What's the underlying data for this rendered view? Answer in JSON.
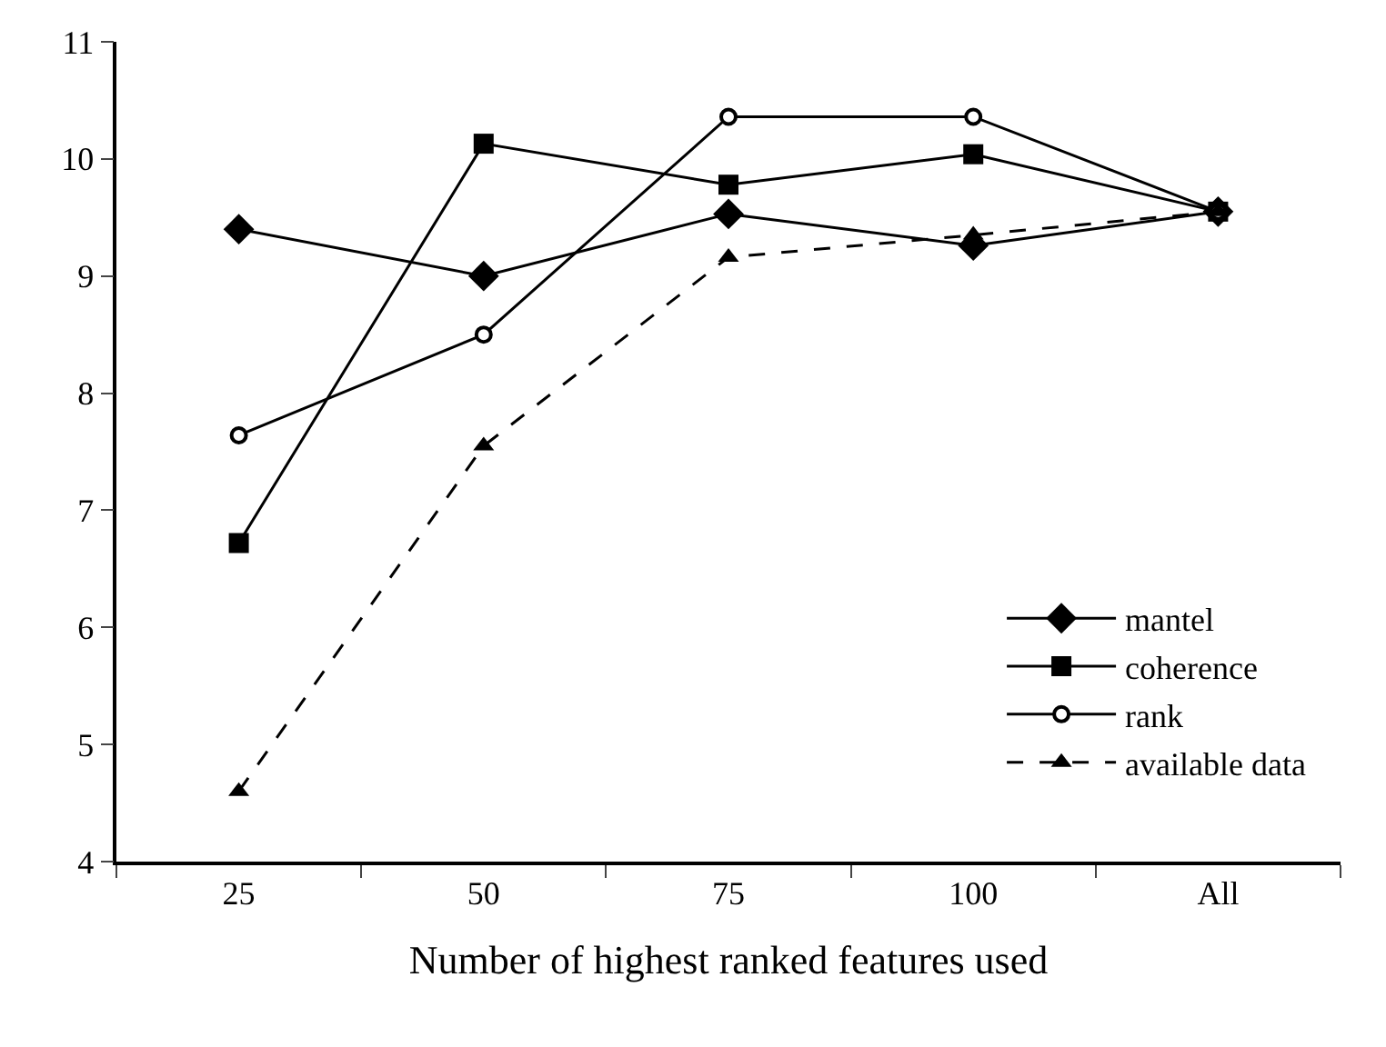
{
  "chart_data": {
    "type": "line",
    "xlabel": "Number of highest ranked features used",
    "categories": [
      "25",
      "50",
      "75",
      "100",
      "All"
    ],
    "series": [
      {
        "name": "mantel",
        "color": "#000000",
        "marker": "diamond",
        "line_style": "solid",
        "values": [
          9.4,
          9.0,
          9.53,
          9.26,
          9.55
        ]
      },
      {
        "name": "coherence",
        "color": "#000000",
        "marker": "square",
        "line_style": "solid",
        "values": [
          6.72,
          10.13,
          9.78,
          10.04,
          9.55
        ]
      },
      {
        "name": "rank",
        "color": "#000000",
        "marker": "circle",
        "line_style": "solid",
        "values": [
          7.64,
          8.5,
          10.36,
          10.36,
          9.55
        ]
      },
      {
        "name": "available data",
        "color": "#000000",
        "marker": "triangle",
        "line_style": "dashed",
        "values": [
          4.6,
          7.55,
          9.16,
          9.35,
          9.55
        ]
      }
    ],
    "ylim": [
      4,
      11
    ],
    "yticks": [
      4,
      5,
      6,
      7,
      8,
      9,
      10,
      11
    ],
    "legend": "bottom right"
  }
}
